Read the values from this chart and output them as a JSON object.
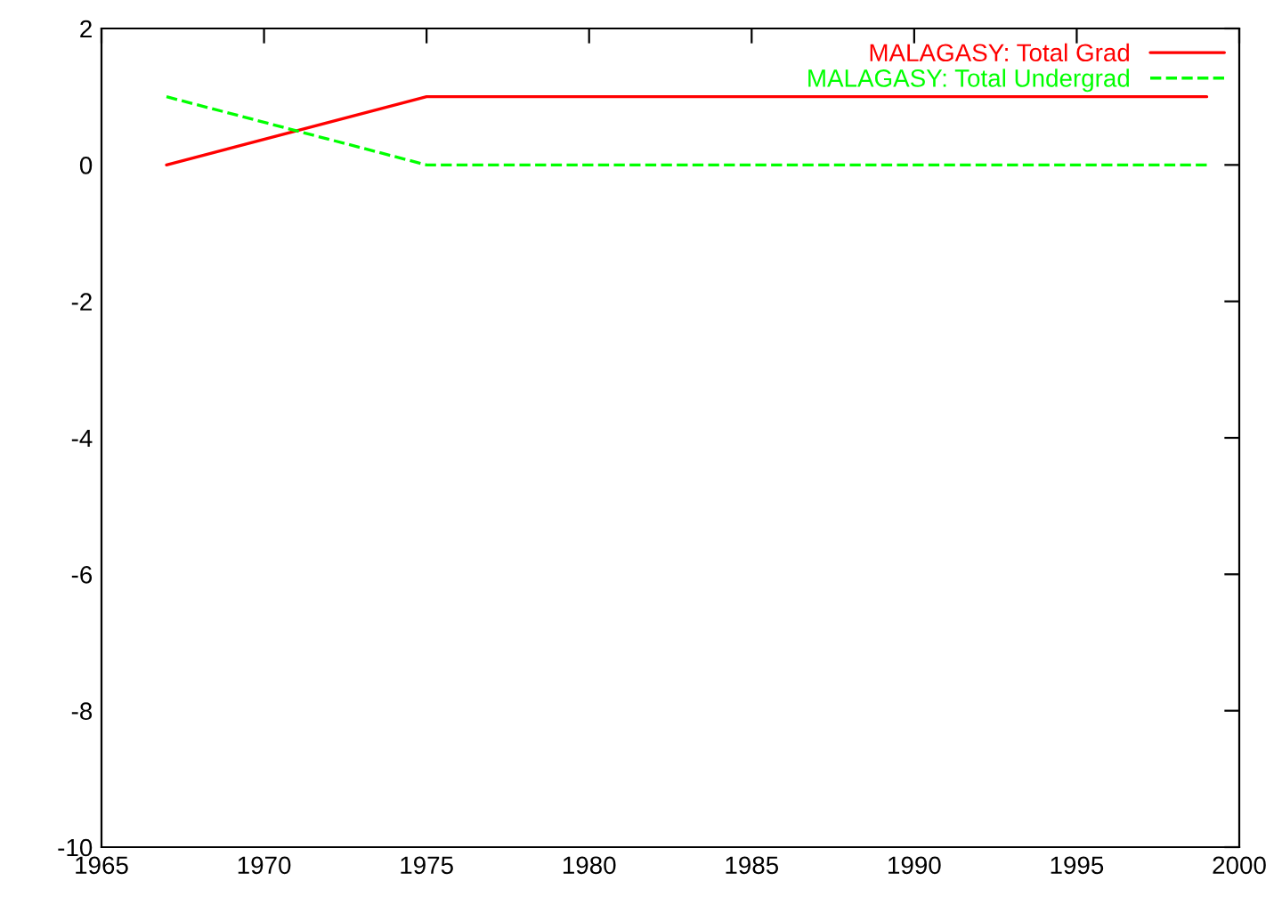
{
  "chart_data": {
    "type": "line",
    "x": [
      1967,
      1975,
      1999
    ],
    "series": [
      {
        "name": "MALAGASY: Total Grad",
        "color": "#ff0000",
        "values": [
          0,
          1,
          1
        ],
        "line_style": "solid"
      },
      {
        "name": "MALAGASY: Total Undergrad",
        "color": "#00ff00",
        "values": [
          1,
          0,
          0
        ],
        "line_style": "dashed"
      }
    ],
    "xlim": [
      1965,
      2000
    ],
    "xticks": [
      1965,
      1970,
      1975,
      1980,
      1985,
      1990,
      1995,
      2000
    ],
    "ylim": [
      -10,
      2
    ],
    "yticks": [
      -10,
      -8,
      -6,
      -4,
      -2,
      0,
      2
    ],
    "grid": false,
    "legend": "top right",
    "marker": "none"
  }
}
